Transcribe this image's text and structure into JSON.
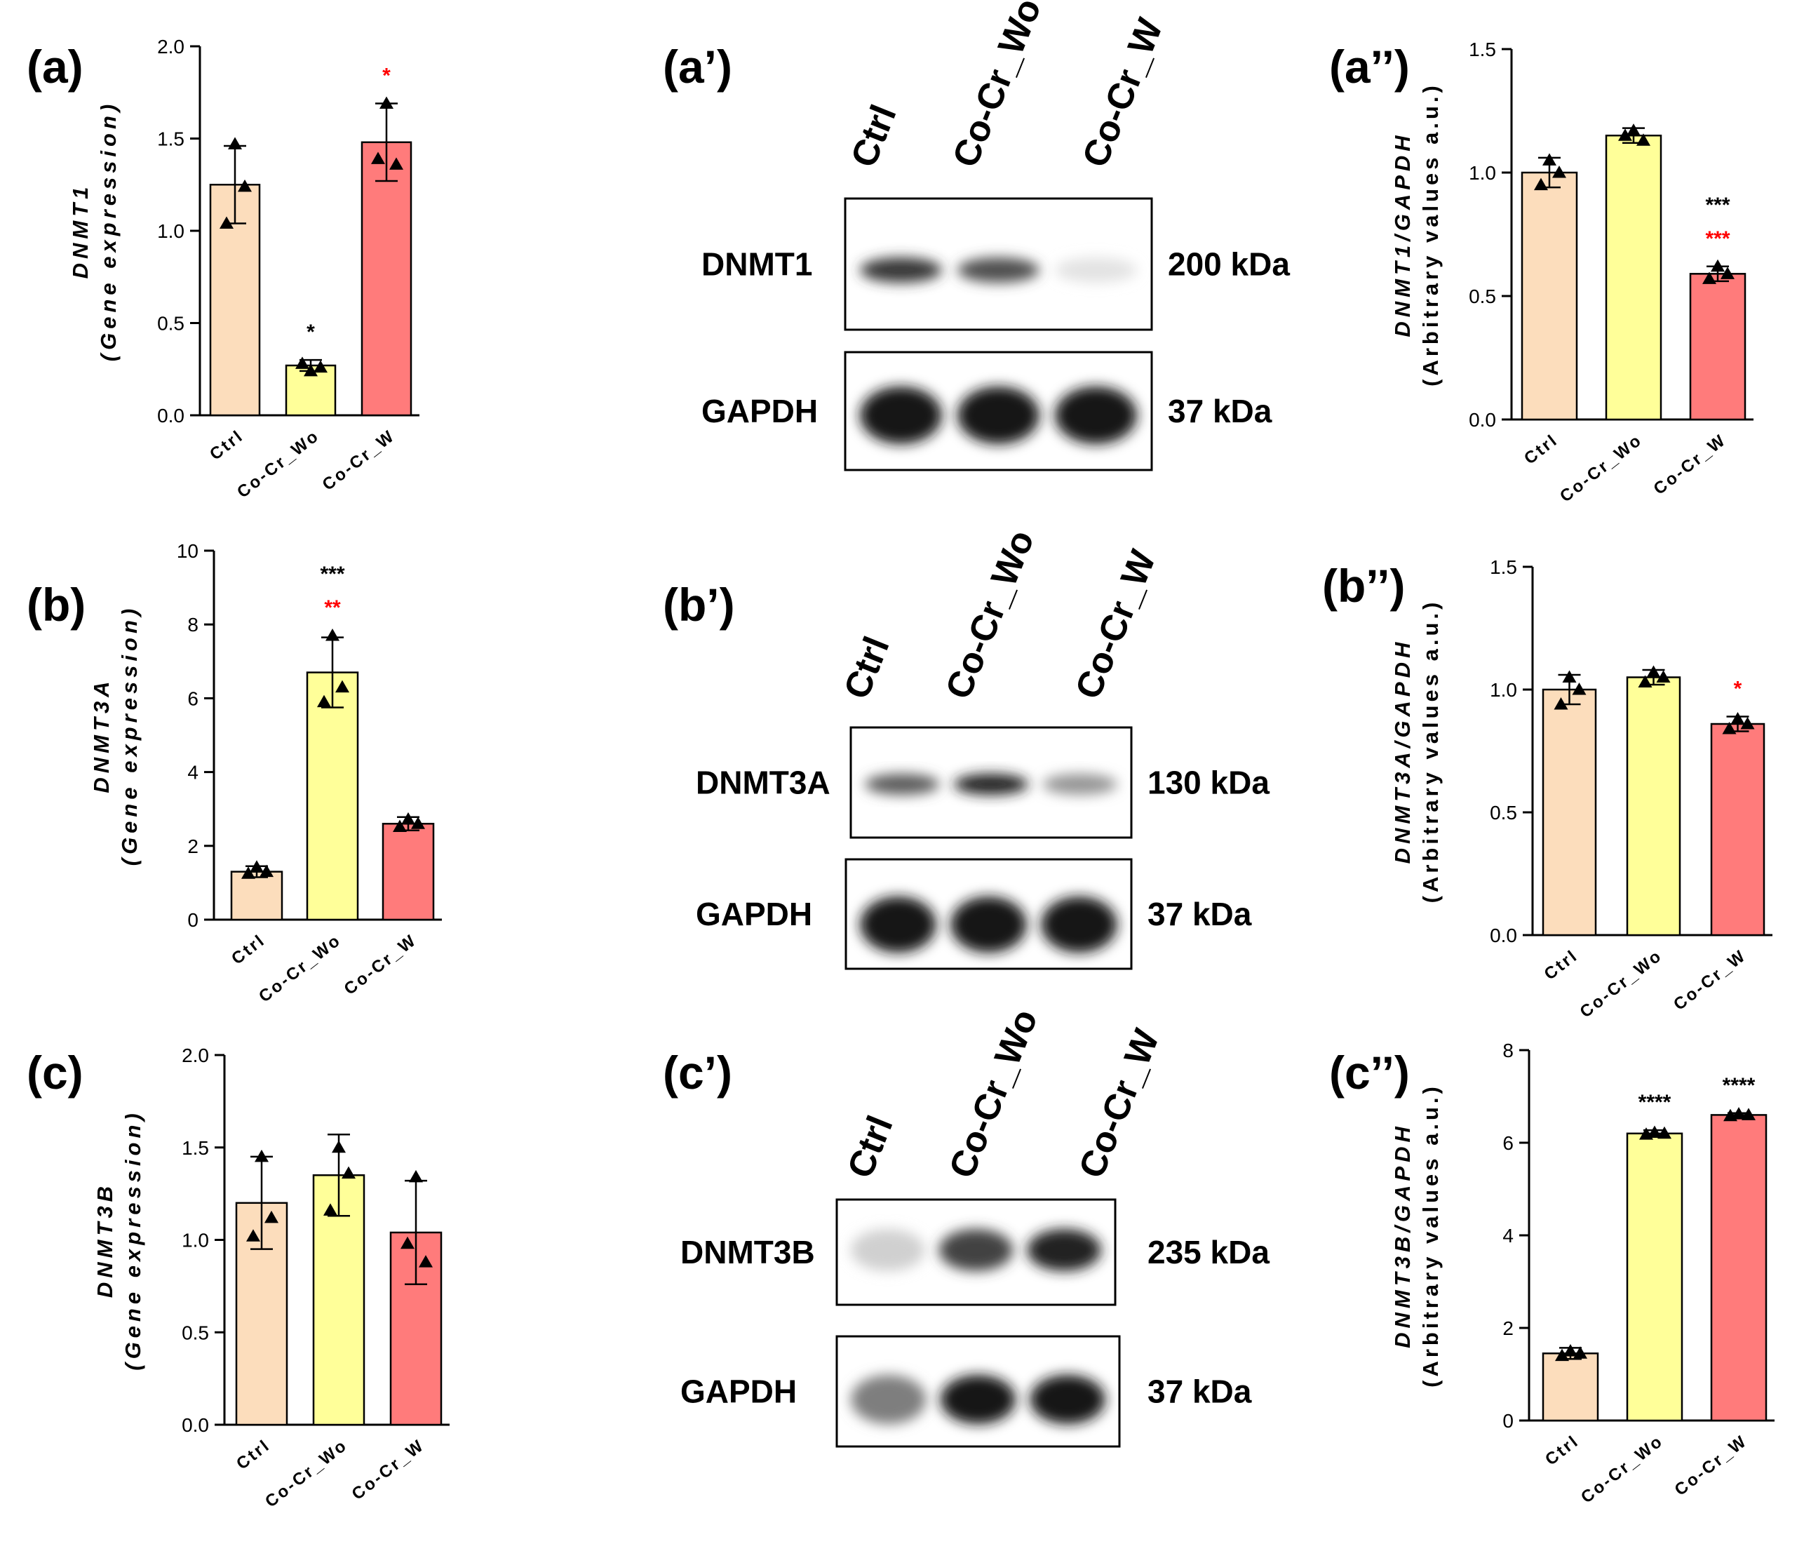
{
  "panel_labels": {
    "a": "(a)",
    "a1": "(a’)",
    "a2": "(a’’)",
    "b": "(b)",
    "b1": "(b’)",
    "b2": "(b’’)",
    "c": "(c)",
    "c1": "(c’)",
    "c2": "(c’’)"
  },
  "colors": {
    "ctrl": "#FCDDBC",
    "cocr_wo": "#FFFF99",
    "cocr_w": "#FF7B7B",
    "sig_black": "#000000",
    "sig_red": "#FF0000"
  },
  "chart_data": [
    {
      "id": "a",
      "type": "bar",
      "title": "",
      "ylabel_line1": "DNMT1",
      "ylabel_line2": "(Gene expression)",
      "categories": [
        "Ctrl",
        "Co-Cr_Wo",
        "Co-Cr_W"
      ],
      "values": [
        1.25,
        0.27,
        1.48
      ],
      "errors": [
        0.21,
        0.03,
        0.21
      ],
      "points": [
        [
          1.47,
          1.04,
          1.24
        ],
        [
          0.24,
          0.28,
          0.26
        ],
        [
          1.69,
          1.39,
          1.36
        ]
      ],
      "ylim": [
        0,
        2.0
      ],
      "ticks": [
        "0.0",
        "0.5",
        "1.0",
        "1.5",
        "2.0"
      ],
      "annotations": [
        {
          "bar": 1,
          "lines": [
            {
              "text": "*",
              "color": "black"
            }
          ]
        },
        {
          "bar": 2,
          "lines": [
            {
              "text": "*",
              "color": "red"
            }
          ]
        }
      ]
    },
    {
      "id": "a2",
      "type": "bar",
      "title": "",
      "ylabel_line1": "DNMT1/GAPDH",
      "ylabel_line2": "(Arbitrary values a.u.)",
      "categories": [
        "Ctrl",
        "Co-Cr_Wo",
        "Co-Cr_W"
      ],
      "values": [
        1.0,
        1.15,
        0.59
      ],
      "errors": [
        0.06,
        0.03,
        0.03
      ],
      "points": [
        [
          1.05,
          0.95,
          1.0
        ],
        [
          1.17,
          1.15,
          1.13
        ],
        [
          0.62,
          0.57,
          0.59
        ]
      ],
      "ylim": [
        0,
        1.5
      ],
      "ticks": [
        "0.0",
        "0.5",
        "1.0",
        "1.5"
      ],
      "annotations": [
        {
          "bar": 2,
          "lines": [
            {
              "text": "***",
              "color": "black"
            },
            {
              "text": "***",
              "color": "red"
            }
          ]
        }
      ]
    },
    {
      "id": "b",
      "type": "bar",
      "title": "",
      "ylabel_line1": "DNMT3A",
      "ylabel_line2": "(Gene expression)",
      "categories": [
        "Ctrl",
        "Co-Cr_Wo",
        "Co-Cr_W"
      ],
      "values": [
        1.3,
        6.7,
        2.6
      ],
      "errors": [
        0.15,
        0.95,
        0.18
      ],
      "points": [
        [
          1.42,
          1.25,
          1.3
        ],
        [
          7.7,
          5.9,
          6.3
        ],
        [
          2.72,
          2.52,
          2.6
        ]
      ],
      "ylim": [
        0,
        10
      ],
      "ticks": [
        "0",
        "2",
        "4",
        "6",
        "8",
        "10"
      ],
      "annotations": [
        {
          "bar": 1,
          "lines": [
            {
              "text": "***",
              "color": "black"
            },
            {
              "text": "**",
              "color": "red"
            }
          ]
        }
      ]
    },
    {
      "id": "b2",
      "type": "bar",
      "title": "",
      "ylabel_line1": "DNMT3A/GAPDH",
      "ylabel_line2": "(Arbitrary values a.u.)",
      "categories": [
        "Ctrl",
        "Co-Cr_Wo",
        "Co-Cr_W"
      ],
      "values": [
        1.0,
        1.05,
        0.86
      ],
      "errors": [
        0.06,
        0.03,
        0.03
      ],
      "points": [
        [
          1.05,
          0.94,
          1.0
        ],
        [
          1.07,
          1.03,
          1.05
        ],
        [
          0.88,
          0.84,
          0.86
        ]
      ],
      "ylim": [
        0,
        1.5
      ],
      "ticks": [
        "0.0",
        "0.5",
        "1.0",
        "1.5"
      ],
      "annotations": [
        {
          "bar": 2,
          "lines": [
            {
              "text": "*",
              "color": "red"
            }
          ]
        }
      ]
    },
    {
      "id": "c",
      "type": "bar",
      "title": "",
      "ylabel_line1": "DNMT3B",
      "ylabel_line2": "(Gene expression)",
      "categories": [
        "Ctrl",
        "Co-Cr_Wo",
        "Co-Cr_W"
      ],
      "values": [
        1.2,
        1.35,
        1.04
      ],
      "errors": [
        0.25,
        0.22,
        0.28
      ],
      "points": [
        [
          1.45,
          1.02,
          1.12
        ],
        [
          1.5,
          1.16,
          1.36
        ],
        [
          1.34,
          0.98,
          0.88
        ]
      ],
      "ylim": [
        0,
        2.0
      ],
      "ticks": [
        "0.0",
        "0.5",
        "1.0",
        "1.5",
        "2.0"
      ],
      "annotations": []
    },
    {
      "id": "c2",
      "type": "bar",
      "title": "",
      "ylabel_line1": "DNMT3B/GAPDH",
      "ylabel_line2": "(Arbitrary values a.u.)",
      "categories": [
        "Ctrl",
        "Co-Cr_Wo",
        "Co-Cr_W"
      ],
      "values": [
        1.45,
        6.2,
        6.6
      ],
      "errors": [
        0.12,
        0.07,
        0.04
      ],
      "points": [
        [
          1.5,
          1.4,
          1.45
        ],
        [
          6.22,
          6.18,
          6.2
        ],
        [
          6.62,
          6.58,
          6.6
        ]
      ],
      "ylim": [
        0,
        8
      ],
      "ticks": [
        "0",
        "2",
        "4",
        "6",
        "8"
      ],
      "annotations": [
        {
          "bar": 1,
          "lines": [
            {
              "text": "****",
              "color": "black"
            }
          ]
        },
        {
          "bar": 2,
          "lines": [
            {
              "text": "****",
              "color": "black"
            }
          ]
        }
      ]
    }
  ],
  "blots": [
    {
      "id": "a1",
      "lanes": [
        "Ctrl",
        "Co-Cr_Wo",
        "Co-Cr_W"
      ],
      "rows": [
        {
          "name": "DNMT1",
          "kda": "200 kDa",
          "intensity": [
            0.85,
            0.75,
            0.12
          ]
        },
        {
          "name": "GAPDH",
          "kda": "37 kDa",
          "intensity": [
            1.0,
            1.0,
            1.0
          ]
        }
      ]
    },
    {
      "id": "b1",
      "lanes": [
        "Ctrl",
        "Co-Cr_Wo",
        "Co-Cr_W"
      ],
      "rows": [
        {
          "name": "DNMT3A",
          "kda": "130 kDa",
          "intensity": [
            0.7,
            0.95,
            0.45
          ]
        },
        {
          "name": "GAPDH",
          "kda": "37 kDa",
          "intensity": [
            1.0,
            1.0,
            1.0
          ]
        }
      ]
    },
    {
      "id": "c1",
      "lanes": [
        "Ctrl",
        "Co-Cr_Wo",
        "Co-Cr_W"
      ],
      "rows": [
        {
          "name": "DNMT3B",
          "kda": "235 kDa",
          "intensity": [
            0.2,
            0.8,
            0.95
          ]
        },
        {
          "name": "GAPDH",
          "kda": "37 kDa",
          "intensity": [
            0.55,
            1.0,
            1.0
          ]
        }
      ]
    }
  ]
}
